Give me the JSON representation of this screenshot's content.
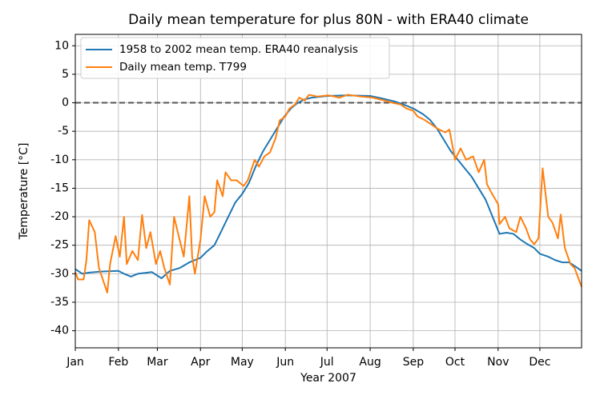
{
  "chart_data": {
    "type": "line",
    "title": "Daily mean temperature for plus 80N - with ERA40 climate",
    "xlabel": "Year 2007",
    "ylabel": "Temperature [°C]",
    "xlim": [
      0,
      364
    ],
    "xticks": [
      {
        "value": 0,
        "label": "Jan"
      },
      {
        "value": 31,
        "label": "Feb"
      },
      {
        "value": 59,
        "label": "Mar"
      },
      {
        "value": 90,
        "label": "Apr"
      },
      {
        "value": 120,
        "label": "May"
      },
      {
        "value": 151,
        "label": "Jun"
      },
      {
        "value": 181,
        "label": "Jul"
      },
      {
        "value": 212,
        "label": "Aug"
      },
      {
        "value": 243,
        "label": "Sep"
      },
      {
        "value": 273,
        "label": "Oct"
      },
      {
        "value": 304,
        "label": "Nov"
      },
      {
        "value": 334,
        "label": "Dec"
      }
    ],
    "ylim": [
      -43,
      12
    ],
    "yticks": [
      10,
      5,
      0,
      -5,
      -10,
      -15,
      -20,
      -25,
      -30,
      -35,
      -40
    ],
    "grid": true,
    "legend": "upper left",
    "reference_line": {
      "value": 0,
      "color": "#555555",
      "dashed": true
    },
    "series": [
      {
        "name": "1958 to 2002 mean temp. ERA40 reanalysis",
        "color": "#1f77b4",
        "x": [
          0,
          5,
          10,
          20,
          31,
          35,
          40,
          45,
          55,
          62,
          68,
          75,
          82,
          90,
          95,
          100,
          105,
          110,
          115,
          120,
          125,
          130,
          135,
          140,
          145,
          150,
          155,
          160,
          165,
          170,
          181,
          195,
          212,
          220,
          230,
          238,
          243,
          250,
          255,
          260,
          265,
          270,
          275,
          280,
          285,
          290,
          295,
          300,
          305,
          310,
          315,
          320,
          325,
          330,
          334,
          340,
          345,
          350,
          355,
          360,
          364
        ],
        "values": [
          -29.2,
          -30,
          -29.8,
          -29.6,
          -29.5,
          -30,
          -30.5,
          -30,
          -29.7,
          -30.8,
          -29.5,
          -29,
          -28,
          -27.2,
          -26,
          -25,
          -22.5,
          -20,
          -17.5,
          -16,
          -14,
          -11,
          -8.5,
          -6.5,
          -4.5,
          -2.5,
          -1,
          0,
          0.6,
          0.9,
          1.2,
          1.3,
          1.2,
          0.8,
          0.2,
          -0.5,
          -1,
          -2,
          -3,
          -4.5,
          -6.5,
          -8.5,
          -10,
          -11.5,
          -13,
          -15,
          -17,
          -20,
          -23,
          -22.8,
          -23,
          -24,
          -24.8,
          -25.5,
          -26.5,
          -27,
          -27.6,
          -28,
          -28,
          -28.8,
          -29.5
        ]
      },
      {
        "name": "Daily mean temp. T799",
        "color": "#ff7f0e",
        "x": [
          0,
          2,
          6,
          8,
          10,
          14,
          17,
          23,
          25,
          29,
          32,
          35,
          37,
          41,
          45,
          48,
          51,
          54,
          58,
          61,
          64,
          68,
          71,
          75,
          78,
          82,
          84,
          86,
          90,
          93,
          97,
          100,
          102,
          106,
          108,
          112,
          116,
          121,
          124,
          129,
          132,
          136,
          140,
          144,
          147,
          151,
          154,
          158,
          161,
          165,
          168,
          174,
          182,
          190,
          196,
          205,
          214,
          222,
          228,
          234,
          238,
          243,
          246,
          251,
          256,
          260,
          266,
          269,
          273,
          277,
          281,
          286,
          290,
          294,
          296,
          299,
          304,
          305,
          309,
          312,
          317,
          320,
          324,
          327,
          330,
          333,
          336,
          340,
          343,
          347,
          349,
          352,
          356,
          359,
          364
        ],
        "values": [
          -29.7,
          -31,
          -31,
          -27.6,
          -20.6,
          -22.7,
          -29,
          -33.3,
          -28.3,
          -23.4,
          -27,
          -20,
          -28.3,
          -26,
          -27.6,
          -19.7,
          -25.5,
          -22.7,
          -28.3,
          -26,
          -29,
          -31.9,
          -20,
          -24,
          -27,
          -16.4,
          -27,
          -30,
          -24,
          -16.4,
          -20,
          -19.2,
          -13.6,
          -16.4,
          -12.2,
          -13.6,
          -13.6,
          -14.6,
          -13.6,
          -10,
          -11.2,
          -9.4,
          -8.7,
          -6.2,
          -3.1,
          -2.4,
          -1,
          -0.3,
          0.9,
          0.4,
          1.4,
          1.1,
          1.3,
          0.9,
          1.4,
          1.1,
          0.9,
          0.4,
          0,
          -0.3,
          -1,
          -1.4,
          -2.4,
          -3,
          -3.8,
          -4.5,
          -5.2,
          -4.7,
          -10,
          -8,
          -10,
          -9.4,
          -12.2,
          -10,
          -14.3,
          -15.7,
          -17.8,
          -21.3,
          -20,
          -22,
          -22.7,
          -20,
          -22,
          -24,
          -24.8,
          -23.8,
          -11.5,
          -20,
          -21,
          -23.8,
          -19.6,
          -25.5,
          -28.3,
          -29,
          -32.3
        ]
      }
    ]
  }
}
